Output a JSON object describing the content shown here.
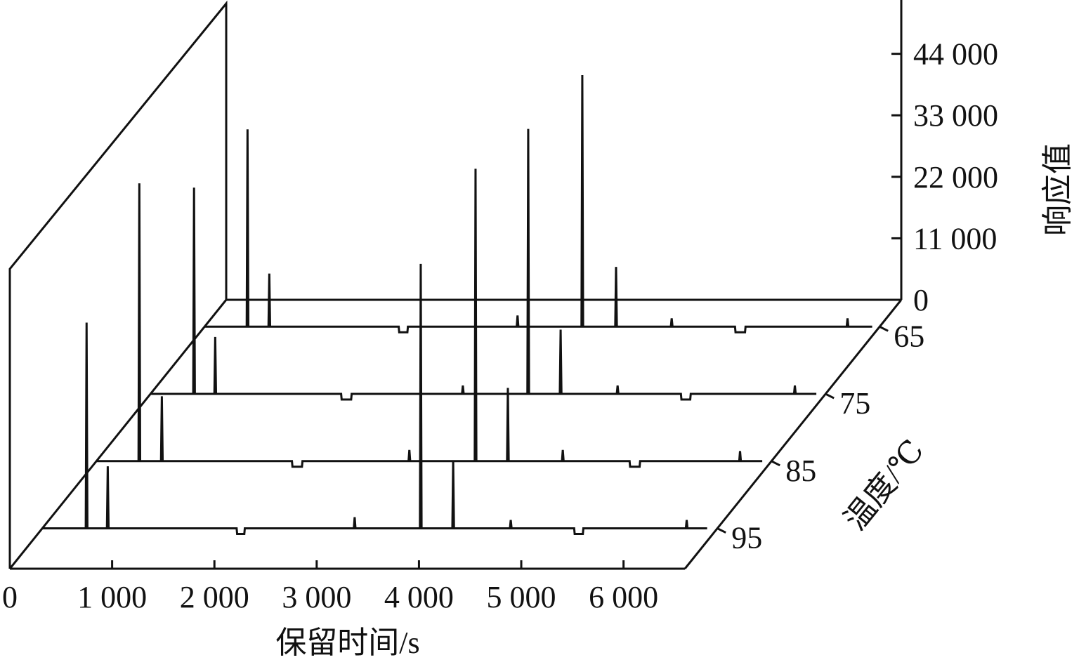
{
  "chart_data": {
    "type": "waterfall3d",
    "x_label": "保留时间/s",
    "y_label": "响应值",
    "z_label": "温度/℃",
    "xlim": [
      0,
      6600
    ],
    "ylim": [
      0,
      53000
    ],
    "zlim": [
      101,
      61
    ],
    "xticks": [
      0,
      {
        "value": 1000,
        "label": "1 000"
      },
      {
        "value": 2000,
        "label": "2 000"
      },
      {
        "value": 3000,
        "label": "3 000"
      },
      {
        "value": 4000,
        "label": "4 000"
      },
      {
        "value": 5000,
        "label": "5 000"
      },
      {
        "value": 6000,
        "label": "6 000"
      }
    ],
    "yticks": [
      0,
      {
        "value": 11000,
        "label": "11 000"
      },
      {
        "value": 22000,
        "label": "22 000"
      },
      {
        "value": 33000,
        "label": "33 000"
      },
      {
        "value": 44000,
        "label": "44 000"
      }
    ],
    "color": "#111111",
    "series": [
      {
        "name": "65",
        "x": [
          0,
          412,
          420,
          428,
          625,
          633,
          641,
          1898,
          1903,
          1983,
          1988,
          3052,
          3060,
          3068,
          3685,
          3693,
          3701,
          4015,
          4023,
          4031,
          4559,
          4567,
          4575,
          5186,
          5191,
          5284,
          5289,
          6278,
          6286,
          6294,
          6527
        ],
        "values": [
          0,
          0,
          35300,
          0,
          0,
          9500,
          0,
          0,
          -1000,
          -1000,
          0,
          0,
          2000,
          0,
          0,
          45000,
          0,
          0,
          10700,
          0,
          0,
          1500,
          0,
          0,
          -1000,
          -1000,
          0,
          0,
          1500,
          0,
          0
        ]
      },
      {
        "name": "75",
        "x": [
          0,
          418,
          426,
          434,
          625,
          633,
          641,
          1864,
          1869,
          1962,
          1967,
          3046,
          3054,
          3062,
          3685,
          3693,
          3701,
          4002,
          4010,
          4018,
          4559,
          4567,
          4575,
          5186,
          5191,
          5277,
          5282,
          6292,
          6300,
          6308,
          6510
        ],
        "values": [
          0,
          0,
          36900,
          0,
          0,
          10200,
          0,
          0,
          -1000,
          -1000,
          0,
          0,
          1500,
          0,
          0,
          47400,
          0,
          0,
          11500,
          0,
          0,
          1500,
          0,
          0,
          -1000,
          -1000,
          0,
          0,
          1500,
          0,
          0
        ]
      },
      {
        "name": "85",
        "x": [
          0,
          412,
          420,
          428,
          632,
          640,
          648,
          1912,
          1917,
          2010,
          2015,
          3052,
          3060,
          3068,
          3699,
          3707,
          3715,
          4015,
          4023,
          4031,
          4552,
          4560,
          4568,
          5213,
          5218,
          5311,
          5316,
          6285,
          6293,
          6301,
          6510
        ],
        "values": [
          0,
          0,
          49700,
          0,
          0,
          11600,
          0,
          0,
          -1000,
          -1000,
          0,
          0,
          2000,
          0,
          0,
          52300,
          0,
          0,
          13100,
          0,
          0,
          2000,
          0,
          0,
          -1000,
          -1000,
          0,
          0,
          1800,
          0,
          0
        ]
      },
      {
        "name": "95",
        "x": [
          0,
          425,
          433,
          441,
          632,
          640,
          648,
          1900,
          1905,
          1975,
          1980,
          3046,
          3054,
          3062,
          3692,
          3700,
          3708,
          4009,
          4017,
          4025,
          4572,
          4580,
          4588,
          5200,
          5205,
          5285,
          5290,
          6292,
          6300,
          6308,
          6500
        ],
        "values": [
          0,
          0,
          36800,
          0,
          0,
          11100,
          0,
          0,
          -1000,
          -1000,
          0,
          0,
          2000,
          0,
          0,
          47300,
          0,
          0,
          12000,
          0,
          0,
          1500,
          0,
          0,
          -1000,
          -1000,
          0,
          0,
          1500,
          0,
          0
        ]
      }
    ]
  }
}
